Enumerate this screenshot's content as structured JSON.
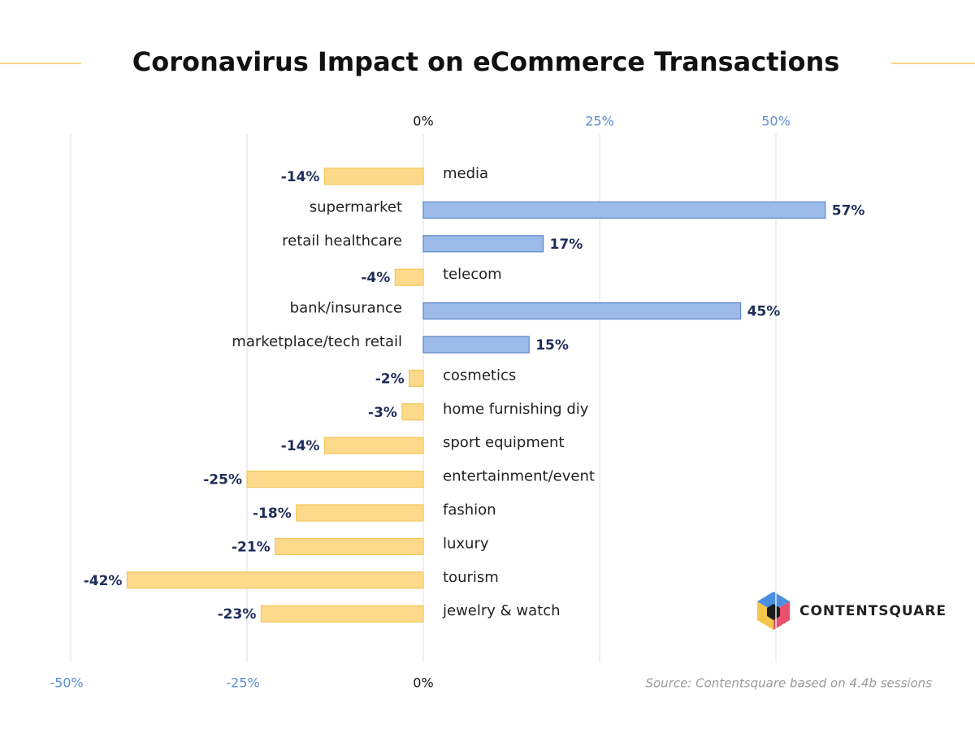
{
  "chart_data": {
    "type": "bar",
    "orientation": "horizontal",
    "title": "Coronavirus Impact on eCommerce Transactions",
    "categories": [
      "media",
      "supermarket",
      "retail healthcare",
      "telecom",
      "bank/insurance",
      "marketplace/tech retail",
      "cosmetics",
      "home furnishing diy",
      "sport equipment",
      "entertainment/event",
      "fashion",
      "luxury",
      "tourism",
      "jewelry & watch"
    ],
    "values": [
      -14,
      57,
      17,
      -4,
      45,
      15,
      -2,
      -3,
      -14,
      -25,
      -18,
      -21,
      -42,
      -23
    ],
    "value_labels": [
      "-14%",
      "57%",
      "17%",
      "-4%",
      "45%",
      "15%",
      "-2%",
      "-3%",
      "-14%",
      "-25%",
      "-18%",
      "-21%",
      "-42%",
      "-23%"
    ],
    "positive_color": "#9dbbe8",
    "negative_color": "#fdd98c",
    "xlim": [
      -50,
      50
    ],
    "xticks": [
      {
        "value": -50,
        "label": "-50%"
      },
      {
        "value": -25,
        "label": "-25%"
      },
      {
        "value": 0,
        "label": "0%"
      },
      {
        "value": 25,
        "label": "25%"
      },
      {
        "value": 50,
        "label": "50%"
      }
    ],
    "grid": true,
    "source": "Source: Contentsquare based on 4.4b sessions",
    "brand": "CONTENTSQUARE"
  }
}
